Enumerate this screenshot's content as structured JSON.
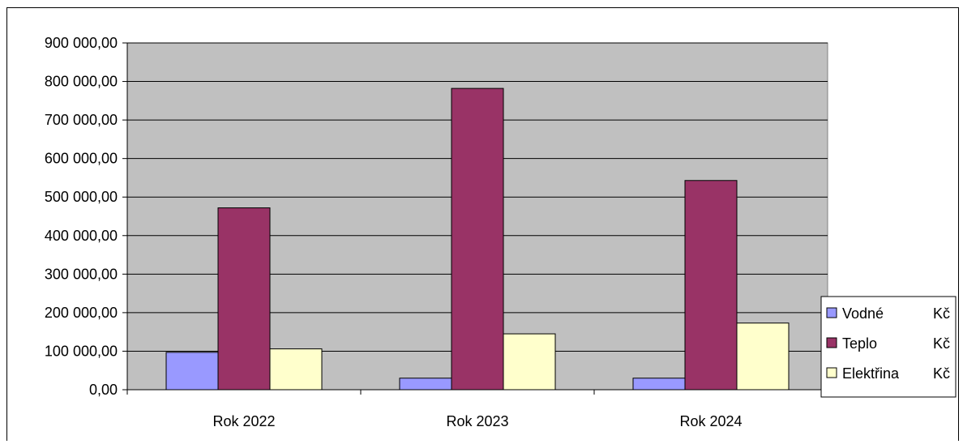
{
  "chart_data": {
    "type": "bar",
    "categories": [
      "Rok 2022",
      "Rok 2023",
      "Rok 2024"
    ],
    "series": [
      {
        "name": "Vodné",
        "unit": "Kč",
        "color": "#9999FF",
        "values": [
          97000,
          30000,
          30000
        ]
      },
      {
        "name": "Teplo",
        "unit": "Kč",
        "color": "#993366",
        "values": [
          472000,
          782000,
          543000
        ]
      },
      {
        "name": "Elektřina",
        "unit": "Kč",
        "color": "#FFFFCC",
        "values": [
          106000,
          145000,
          173000
        ]
      }
    ],
    "ylim": [
      0,
      900000
    ],
    "yticks": [
      {
        "value": 0,
        "label": "0,00"
      },
      {
        "value": 100000,
        "label": "100 000,00"
      },
      {
        "value": 200000,
        "label": "200 000,00"
      },
      {
        "value": 300000,
        "label": "300 000,00"
      },
      {
        "value": 400000,
        "label": "400 000,00"
      },
      {
        "value": 500000,
        "label": "500 000,00"
      },
      {
        "value": 600000,
        "label": "600 000,00"
      },
      {
        "value": 700000,
        "label": "700 000,00"
      },
      {
        "value": 800000,
        "label": "800 000,00"
      },
      {
        "value": 900000,
        "label": "900 000,00"
      }
    ],
    "title": "",
    "xlabel": "",
    "ylabel": "",
    "grid": true,
    "plot_background": "#C0C0C0",
    "legend_position": "right"
  }
}
